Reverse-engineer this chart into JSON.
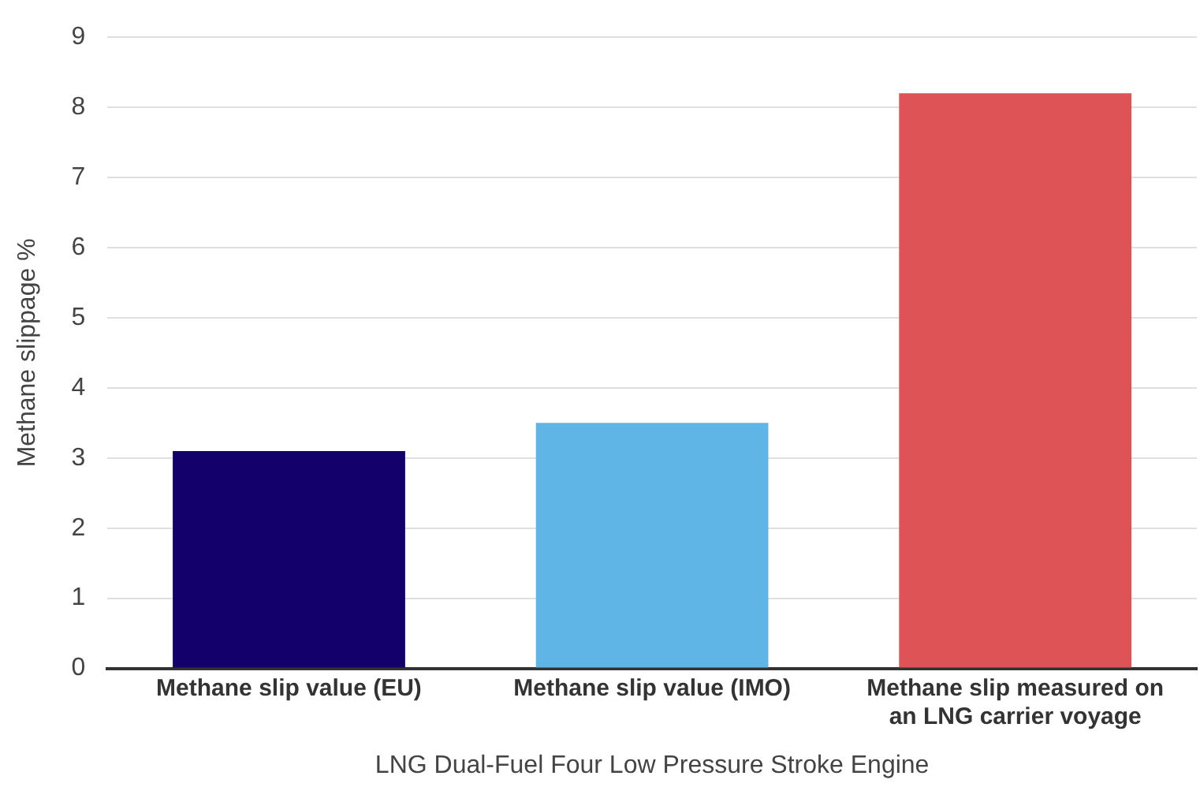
{
  "chart_data": {
    "type": "bar",
    "xlabel": "LNG Dual-Fuel Four Low Pressure Stroke Engine",
    "ylabel": "Methane slippage %",
    "categories": [
      "Methane slip value (EU)",
      "Methane slip value (IMO)",
      "Methane slip measured on an LNG carrier voyage"
    ],
    "values": [
      3.1,
      3.5,
      8.2
    ],
    "colors": [
      "#13006b",
      "#5fb6e6",
      "#dd5356"
    ],
    "ylim": [
      0,
      9
    ],
    "yticks": [
      0,
      1,
      2,
      3,
      4,
      5,
      6,
      7,
      8,
      9
    ],
    "grid": "y",
    "legend": false
  }
}
